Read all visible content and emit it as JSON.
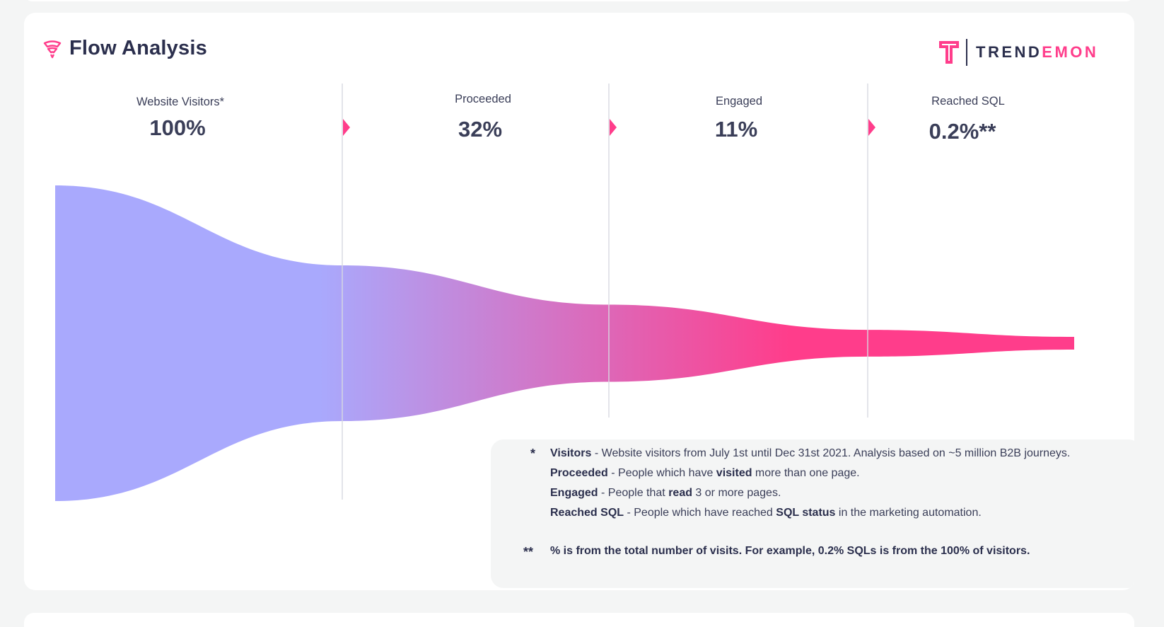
{
  "header": {
    "title": "Flow Analysis",
    "title_icon": "funnel-icon"
  },
  "logo": {
    "part1": "TREND",
    "part2": "EMON",
    "icon": "trendemon-logo-icon"
  },
  "chart_data": {
    "type": "area",
    "title": "Flow Analysis",
    "categories": [
      "Website Visitors*",
      "Proceeded",
      "Engaged",
      "Reached SQL"
    ],
    "values": [
      100,
      32,
      11,
      0.2
    ],
    "value_labels": [
      "100%",
      "32%",
      "11%",
      "0.2%**"
    ],
    "unit": "%",
    "grid": false,
    "colors": {
      "start": "#a9a9fd",
      "end": "#ff3d8b",
      "divider": "#d7d9e0",
      "arrow": "#ff3d8b"
    }
  },
  "notes": {
    "star1": "*",
    "star2": "**",
    "visitors": {
      "term": "Visitors",
      "text": " - Website visitors from July 1st until Dec 31st 2021. Analysis based on ~5 million B2B journeys."
    },
    "proceeded": {
      "term": "Proceeded",
      "text1": "  - People which have ",
      "bold": "visited",
      "text2": " more than one page."
    },
    "engaged": {
      "term": "Engaged",
      "text1": "  - People that ",
      "bold": "read",
      "text2": " 3 or more pages."
    },
    "reached": {
      "term": "Reached SQL",
      "text1": " - People which have reached ",
      "bold": "SQL status",
      "text2": " in the marketing automation."
    },
    "footnote": "% is from the total number of visits. For example, 0.2% SQLs is from the 100% of visitors."
  }
}
